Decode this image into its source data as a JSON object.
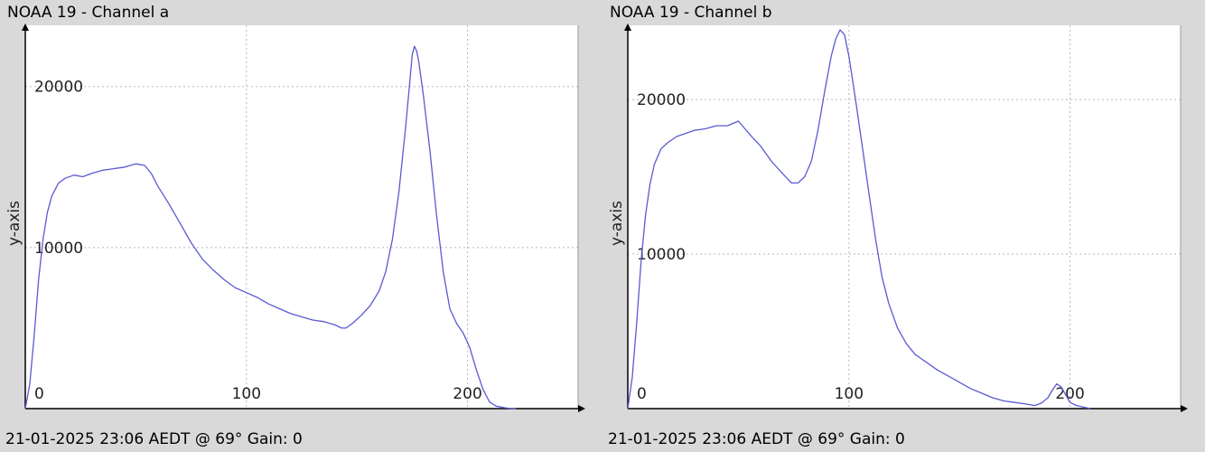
{
  "chart_data": [
    {
      "type": "line",
      "title": "NOAA 19 - Channel a",
      "ylabel": "y-axis",
      "xlabel": "",
      "xlim": [
        0,
        250
      ],
      "ylim": [
        0,
        23800
      ],
      "xticks": [
        0,
        100,
        200
      ],
      "yticks": [
        10000,
        20000
      ],
      "grid": true,
      "line_color": "#5a5ad2",
      "footer": "21-01-2025 23:06 AEDT @ 69° Gain: 0",
      "series": [
        {
          "x": [
            0,
            2,
            4,
            6,
            8,
            10,
            12,
            15,
            18,
            22,
            26,
            30,
            35,
            40,
            45,
            50,
            54,
            57,
            60,
            65,
            70,
            75,
            80,
            85,
            90,
            95,
            100,
            105,
            110,
            115,
            120,
            125,
            130,
            135,
            140,
            143,
            145,
            148,
            152,
            156,
            160,
            163,
            166,
            169,
            172,
            174,
            175,
            176,
            177,
            178,
            180,
            183,
            186,
            189,
            192,
            195,
            198,
            201,
            204,
            207,
            210,
            213,
            217,
            220,
            222
          ],
          "y": [
            0,
            1500,
            4500,
            8000,
            10500,
            12200,
            13200,
            14000,
            14300,
            14500,
            14400,
            14600,
            14800,
            14900,
            15000,
            15200,
            15100,
            14600,
            13800,
            12700,
            11500,
            10300,
            9300,
            8600,
            8000,
            7500,
            7200,
            6900,
            6500,
            6200,
            5900,
            5700,
            5500,
            5400,
            5200,
            5000,
            5000,
            5300,
            5800,
            6400,
            7300,
            8500,
            10500,
            13500,
            17500,
            20500,
            22000,
            22500,
            22200,
            21500,
            19500,
            16000,
            12000,
            8500,
            6200,
            5300,
            4700,
            3800,
            2400,
            1200,
            400,
            150,
            50,
            0,
            0
          ]
        }
      ]
    },
    {
      "type": "line",
      "title": "NOAA 19 - Channel b",
      "ylabel": "y-axis",
      "xlabel": "",
      "xlim": [
        0,
        250
      ],
      "ylim": [
        0,
        24800
      ],
      "xticks": [
        0,
        100,
        200
      ],
      "yticks": [
        10000,
        20000
      ],
      "grid": true,
      "line_color": "#5a5ad2",
      "footer": "21-01-2025 23:06 AEDT @ 69° Gain: 0",
      "series": [
        {
          "x": [
            0,
            2,
            4,
            6,
            8,
            10,
            12,
            15,
            18,
            22,
            26,
            30,
            35,
            40,
            45,
            50,
            53,
            56,
            60,
            65,
            70,
            74,
            77,
            80,
            83,
            86,
            89,
            92,
            94,
            96,
            98,
            100,
            103,
            106,
            109,
            112,
            115,
            118,
            122,
            126,
            130,
            135,
            140,
            145,
            150,
            155,
            160,
            165,
            170,
            175,
            180,
            184,
            187,
            190,
            192,
            194,
            196,
            198,
            200,
            203,
            206,
            209
          ],
          "y": [
            0,
            2000,
            5500,
            9500,
            12500,
            14500,
            15800,
            16800,
            17200,
            17600,
            17800,
            18000,
            18100,
            18300,
            18300,
            18600,
            18100,
            17600,
            17000,
            16000,
            15200,
            14600,
            14600,
            15000,
            16000,
            18000,
            20500,
            22800,
            23900,
            24500,
            24200,
            22800,
            20000,
            17000,
            14000,
            11000,
            8500,
            6800,
            5200,
            4200,
            3500,
            3000,
            2500,
            2100,
            1700,
            1300,
            1000,
            700,
            500,
            400,
            300,
            200,
            350,
            700,
            1200,
            1600,
            1400,
            900,
            400,
            200,
            100,
            0
          ]
        }
      ]
    }
  ]
}
